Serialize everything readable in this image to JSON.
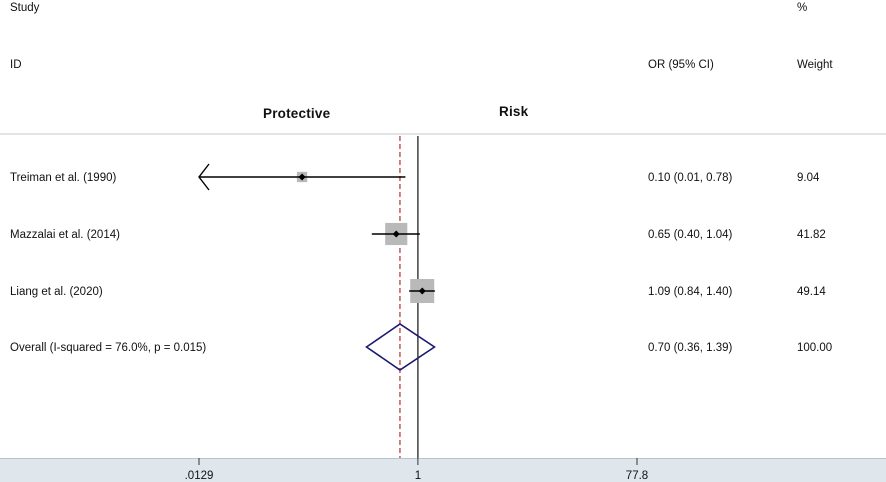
{
  "headers": {
    "study_top": "Study",
    "study_bottom": "ID",
    "or_col": "OR (95% CI)",
    "weight_top": "%",
    "weight_bottom": "Weight"
  },
  "direction_labels": {
    "left": "Protective",
    "right": "Risk"
  },
  "chart_data": {
    "type": "forest",
    "scale": "log",
    "x_ticks": [
      {
        "value": 0.0129,
        "label": ".0129"
      },
      {
        "value": 1,
        "label": "1"
      },
      {
        "value": 77.8,
        "label": "77.8"
      }
    ],
    "xlim": [
      0.0129,
      77.8
    ],
    "null_line": 1,
    "overall_line": 0.7,
    "studies": [
      {
        "label": "Treiman et al.  (1990)",
        "or": 0.1,
        "lo": 0.01,
        "hi": 0.78,
        "ci_text": "0.10 (0.01, 0.78)",
        "weight": 9.04,
        "weight_text": "9.04"
      },
      {
        "label": "Mazzalai et al.  (2014)",
        "or": 0.65,
        "lo": 0.4,
        "hi": 1.04,
        "ci_text": "0.65 (0.40, 1.04)",
        "weight": 41.82,
        "weight_text": "41.82"
      },
      {
        "label": "Liang et al.  (2020)",
        "or": 1.09,
        "lo": 0.84,
        "hi": 1.4,
        "ci_text": "1.09 (0.84, 1.40)",
        "weight": 49.14,
        "weight_text": "49.14"
      }
    ],
    "overall": {
      "label": "Overall  (I-squared = 76.0%, p = 0.015)",
      "or": 0.7,
      "lo": 0.36,
      "hi": 1.39,
      "ci_text": "0.70 (0.36, 1.39)",
      "weight_text": "100.00"
    },
    "colors": {
      "box": "#b9b9b9",
      "diamond": "#1a1a6e",
      "overall_line": "#b03030",
      "null_line": "#111111",
      "ci": "#000000"
    }
  }
}
